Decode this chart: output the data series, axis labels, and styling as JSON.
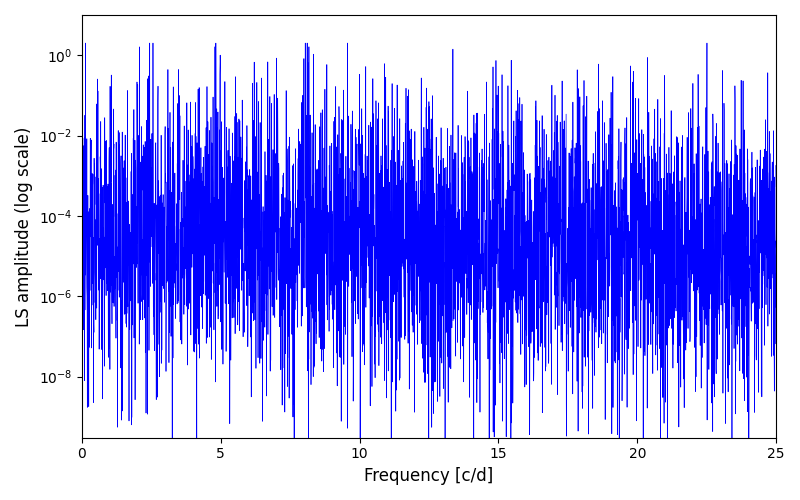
{
  "xlabel": "Frequency [c/d]",
  "ylabel": "LS amplitude (log scale)",
  "xlim": [
    0,
    25
  ],
  "ylim": [
    3e-10,
    10
  ],
  "xticks": [
    0,
    5,
    10,
    15,
    20,
    25
  ],
  "line_color": "#0000ff",
  "line_width": 0.5,
  "background_color": "#ffffff",
  "fig_width": 8.0,
  "fig_height": 5.0,
  "dpi": 100,
  "seed": 12345,
  "n_points": 4000,
  "freq_max": 25.0,
  "noise_mean_log10": -4.5,
  "noise_sigma_log10": 1.8,
  "peak1_freq": 4.98,
  "peak1_amp_log10": 0.0,
  "peak1_n_points": 3,
  "peak2_freq": 2.05,
  "peak2_amp_log10": -2.0,
  "peak2_n_points": 3,
  "peak3_freq": 9.97,
  "peak3_amp_log10": -1.85,
  "peak3_n_points": 3,
  "peak4_freq": 14.5,
  "peak4_amp_log10": -3.5,
  "peak4_n_points": 2,
  "peak5_freq": 20.0,
  "peak5_amp_log10": -3.8,
  "peak5_n_points": 2,
  "xlabel_fontsize": 12,
  "ylabel_fontsize": 12
}
